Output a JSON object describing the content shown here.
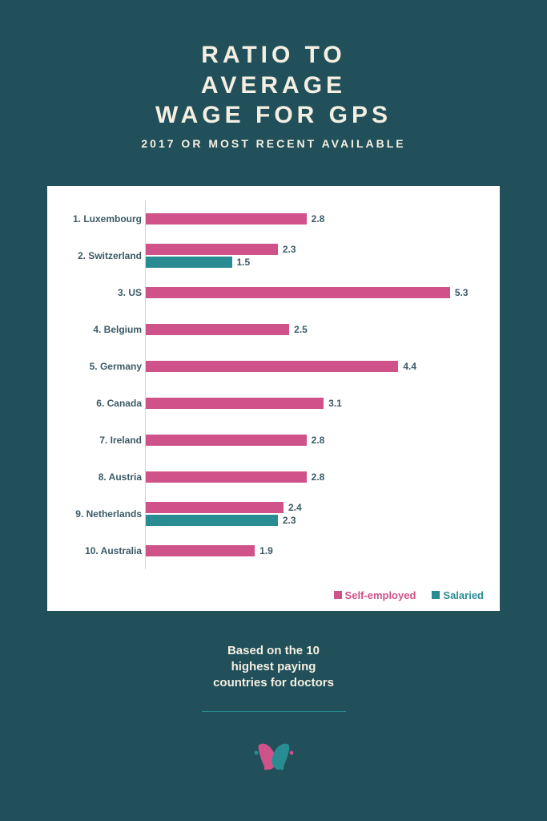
{
  "title_lines": [
    "RATIO TO",
    "AVERAGE",
    "WAGE FOR GPS"
  ],
  "subtitle": "2017 OR MOST RECENT AVAILABLE",
  "footnote_lines": [
    "Based on the 10",
    "highest paying",
    "countries for doctors"
  ],
  "chart": {
    "type": "bar-horizontal-grouped",
    "background_color": "#ffffff",
    "page_background": "#21505a",
    "title_color": "#f4efe2",
    "axis_label_color": "#3b5a66",
    "axis_label_fontsize": 12,
    "xmax": 6.0,
    "series": [
      {
        "name": "Self-employed",
        "color": "#cf528a"
      },
      {
        "name": "Salaried",
        "color": "#2a8c93"
      }
    ],
    "rows": [
      {
        "label": "1. Luxembourg",
        "self": 2.8,
        "salaried": null
      },
      {
        "label": "2. Switzerland",
        "self": 2.3,
        "salaried": 1.5
      },
      {
        "label": "3. US",
        "self": 5.3,
        "salaried": null
      },
      {
        "label": "4. Belgium",
        "self": 2.5,
        "salaried": null
      },
      {
        "label": "5. Germany",
        "self": 4.4,
        "salaried": null
      },
      {
        "label": "6. Canada",
        "self": 3.1,
        "salaried": null
      },
      {
        "label": "7. Ireland",
        "self": 2.8,
        "salaried": null
      },
      {
        "label": "8. Austria",
        "self": 2.8,
        "salaried": null
      },
      {
        "label": "9. Netherlands",
        "self": 2.4,
        "salaried": 2.3
      },
      {
        "label": "10. Australia",
        "self": 1.9,
        "salaried": null
      }
    ],
    "legend_labels": {
      "self": "Self-employed",
      "salaried": "Salaried"
    }
  },
  "logo_colors": {
    "a": "#cf528a",
    "b": "#2a8c93"
  }
}
